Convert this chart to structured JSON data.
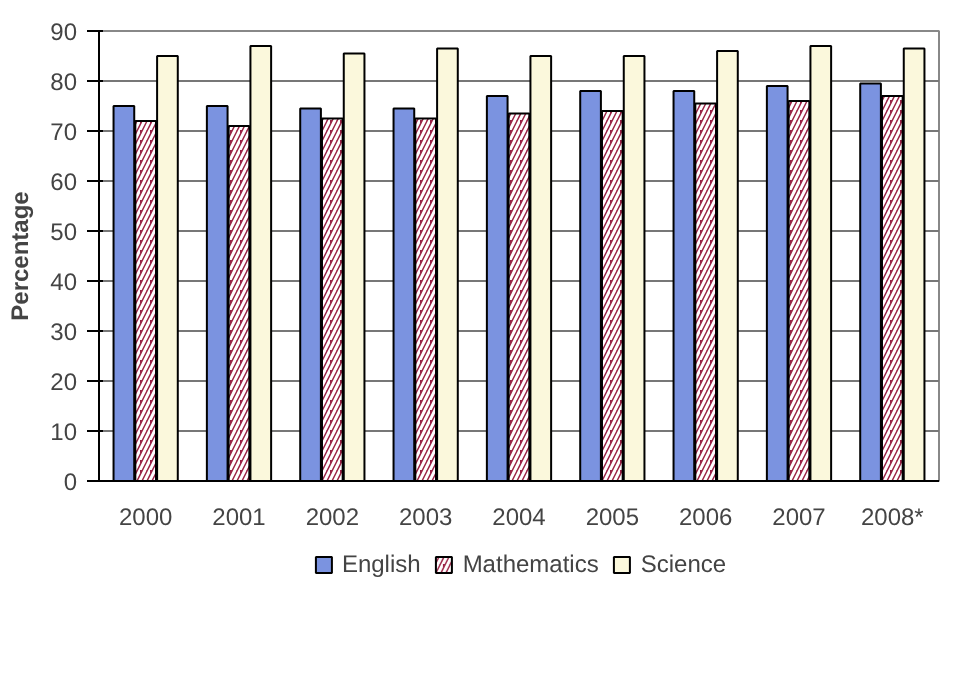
{
  "chart_data": {
    "type": "bar",
    "ylabel": "Percentage",
    "categories": [
      "2000",
      "2001",
      "2002",
      "2003",
      "2004",
      "2005",
      "2006",
      "2007",
      "2008*"
    ],
    "series": [
      {
        "name": "English",
        "color": "#7b93e0",
        "values": [
          75,
          75,
          74.5,
          74.5,
          77,
          78,
          78,
          79,
          79.5
        ]
      },
      {
        "name": "Mathematics",
        "color": "#9b2346",
        "values": [
          72,
          71,
          72.5,
          72.5,
          73.5,
          74,
          75.5,
          76,
          77
        ]
      },
      {
        "name": "Science",
        "color": "#fbf8dc",
        "values": [
          85,
          87,
          85.5,
          86.5,
          85,
          85,
          86,
          87,
          86.5
        ]
      }
    ],
    "ylim": [
      0,
      90
    ],
    "yticks": [
      0,
      10,
      20,
      30,
      40,
      50,
      60,
      70,
      80,
      90
    ],
    "grid": "y",
    "legend": "bottom"
  }
}
